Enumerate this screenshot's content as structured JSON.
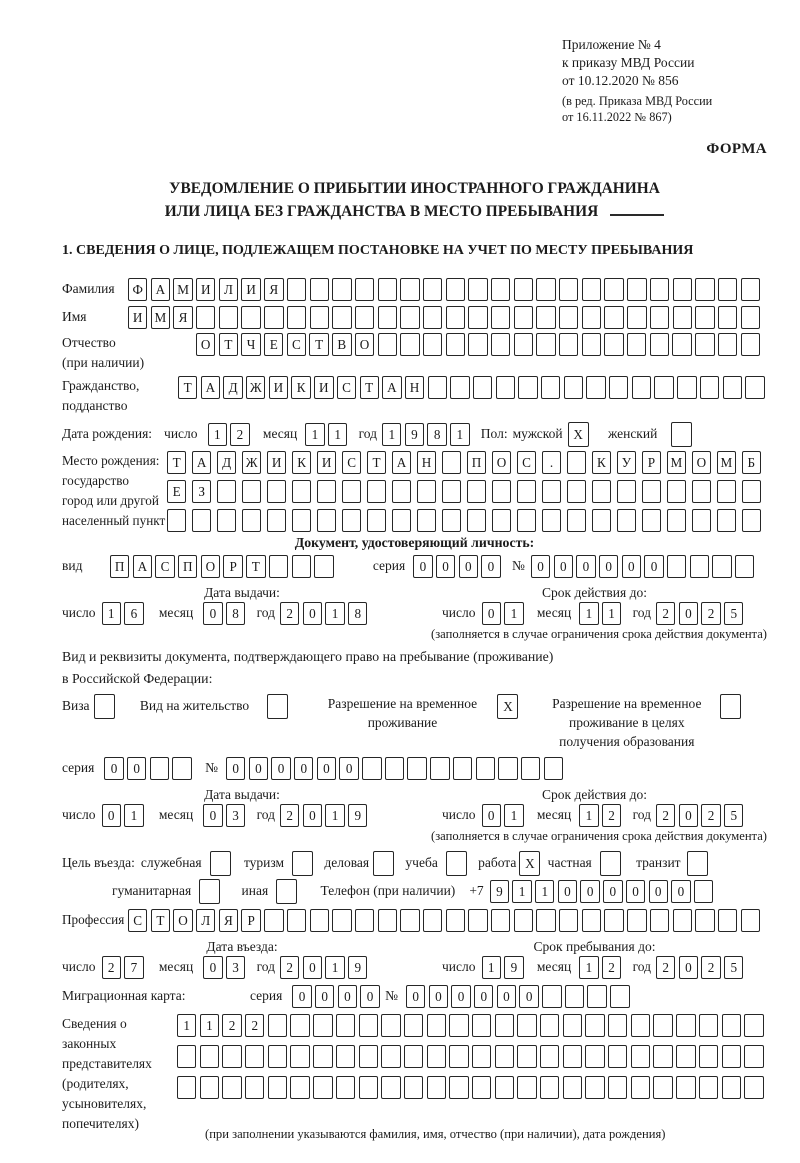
{
  "colors": {
    "ink": "#1b1b1b",
    "paper": "#ffffff"
  },
  "header": {
    "line1": "Приложение № 4",
    "line2": "к приказу МВД России",
    "line3": "от 10.12.2020 № 856",
    "line4": "(в ред. Приказа МВД России",
    "line5": "от 16.11.2022 № 867)",
    "form_label": "ФОРМА"
  },
  "title": {
    "line1": "УВЕДОМЛЕНИЕ О ПРИБЫТИИ ИНОСТРАННОГО ГРАЖДАНИНА",
    "line2": "ИЛИ ЛИЦА БЕЗ ГРАЖДАНСТВА В МЕСТО ПРЕБЫВАНИЯ"
  },
  "section1_heading": "1. СВЕДЕНИЯ О ЛИЦЕ, ПОДЛЕЖАЩЕМ ПОСТАНОВКЕ НА УЧЕТ ПО МЕСТУ ПРЕБЫВАНИЯ",
  "common": {
    "day": "число",
    "month": "месяц",
    "year": "год",
    "series": "серия",
    "no": "№",
    "issue_date": "Дата выдачи:",
    "valid_until": "Срок действия до:",
    "validity_note": "(заполняется в случае ограничения срока действия документа)"
  },
  "person": {
    "surname": {
      "label": "Фамилия",
      "boxes": {
        "v": "ФАМИЛИЯ",
        "n": 28
      }
    },
    "name": {
      "label": "Имя",
      "boxes": {
        "v": "ИМЯ",
        "n": 28
      }
    },
    "patronymic": {
      "label1": "Отчество",
      "label2": "(при наличии)",
      "boxes": {
        "v": "ОТЧЕСТВО",
        "n": 25
      }
    },
    "citizenship": {
      "label1": "Гражданство,",
      "label2": "подданство",
      "boxes": {
        "v": "ТАДЖИКИСТАН",
        "n": 26
      }
    },
    "birth": {
      "label": "Дата рождения:",
      "day": {
        "v": "12",
        "n": 2
      },
      "month": {
        "v": "11",
        "n": 2
      },
      "year": {
        "v": "1981",
        "n": 4
      },
      "sex_label": "Пол:",
      "male_label": "мужской",
      "male": {
        "v": "X",
        "n": 1
      },
      "female_label": "женский",
      "female": {
        "v": "",
        "n": 1
      }
    },
    "birth_place": {
      "labels": [
        "Место рождения:",
        "государство",
        "город или другой",
        "населенный пункт"
      ],
      "row1": {
        "v": "ТАДЖИКИСТАН ПОС. КУРМОМБ",
        "n": 24
      },
      "row2": {
        "v": "ЕЗ",
        "n": 24
      },
      "row3": {
        "v": "",
        "n": 24
      }
    }
  },
  "identity_doc": {
    "heading": "Документ, удостоверяющий личность:",
    "kind_label": "вид",
    "kind": {
      "v": "ПАСПОРТ",
      "n": 10
    },
    "series": {
      "v": "0000",
      "n": 4
    },
    "number": {
      "v": "000000",
      "n": 10
    },
    "issue": {
      "day": {
        "v": "16",
        "n": 2
      },
      "month": {
        "v": "08",
        "n": 2
      },
      "year": {
        "v": "2018",
        "n": 4
      }
    },
    "valid": {
      "day": {
        "v": "01",
        "n": 2
      },
      "month": {
        "v": "11",
        "n": 2
      },
      "year": {
        "v": "2025",
        "n": 4
      }
    }
  },
  "residence_doc": {
    "intro1": "Вид и реквизиты документа, подтверждающего право на пребывание (проживание)",
    "intro2": "в Российской Федерации:",
    "options": [
      {
        "label": "Виза",
        "box": {
          "v": "",
          "n": 1
        }
      },
      {
        "label": "Вид на жительство",
        "box": {
          "v": "",
          "n": 1
        }
      },
      {
        "label": "Разрешение на временное проживание",
        "box": {
          "v": "X",
          "n": 1
        }
      },
      {
        "label": "Разрешение на временное проживание в целях получения образования",
        "box": {
          "v": "",
          "n": 1
        }
      }
    ],
    "series": {
      "v": "00",
      "n": 4
    },
    "number": {
      "v": "000000",
      "n": 15
    },
    "issue": {
      "day": {
        "v": "01",
        "n": 2
      },
      "month": {
        "v": "03",
        "n": 2
      },
      "year": {
        "v": "2019",
        "n": 4
      }
    },
    "valid": {
      "day": {
        "v": "01",
        "n": 2
      },
      "month": {
        "v": "12",
        "n": 2
      },
      "year": {
        "v": "2025",
        "n": 4
      }
    }
  },
  "visit": {
    "purpose_label": "Цель въезда:",
    "purposes": [
      {
        "label": "служебная",
        "box": {
          "v": "",
          "n": 1
        }
      },
      {
        "label": "туризм",
        "box": {
          "v": "",
          "n": 1
        }
      },
      {
        "label": "деловая",
        "box": {
          "v": "",
          "n": 1
        }
      },
      {
        "label": "учеба",
        "box": {
          "v": "",
          "n": 1
        }
      },
      {
        "label": "работа",
        "box": {
          "v": "X",
          "n": 1
        }
      },
      {
        "label": "частная",
        "box": {
          "v": "",
          "n": 1
        }
      },
      {
        "label": "транзит",
        "box": {
          "v": "",
          "n": 1
        }
      },
      {
        "label": "гуманитарная",
        "box": {
          "v": "",
          "n": 1
        }
      },
      {
        "label": "иная",
        "box": {
          "v": "",
          "n": 1
        }
      }
    ],
    "phone_label": "Телефон (при наличии)",
    "phone_prefix": "+7",
    "phone": {
      "v": "911000000",
      "n": 10
    },
    "profession_label": "Профессия",
    "profession": {
      "v": "СТОЛЯР",
      "n": 28
    },
    "entry_date_label": "Дата въезда:",
    "entry": {
      "day": {
        "v": "27",
        "n": 2
      },
      "month": {
        "v": "03",
        "n": 2
      },
      "year": {
        "v": "2019",
        "n": 4
      }
    },
    "stay_label": "Срок пребывания до:",
    "stay": {
      "day": {
        "v": "19",
        "n": 2
      },
      "month": {
        "v": "12",
        "n": 2
      },
      "year": {
        "v": "2025",
        "n": 4
      }
    }
  },
  "migration_card": {
    "label": "Миграционная карта:",
    "series": {
      "v": "0000",
      "n": 4
    },
    "number": {
      "v": "000000",
      "n": 10
    }
  },
  "representatives": {
    "labels": [
      "Сведения о",
      "законных",
      "представителях",
      "(родителях,",
      "усыновителях,",
      "попечителях)"
    ],
    "row1": {
      "v": "1122",
      "n": 26
    },
    "row2": {
      "v": "",
      "n": 26
    },
    "row3": {
      "v": "",
      "n": 26
    },
    "note": "(при заполнении указываются фамилия, имя, отчество (при наличии), дата рождения)"
  }
}
